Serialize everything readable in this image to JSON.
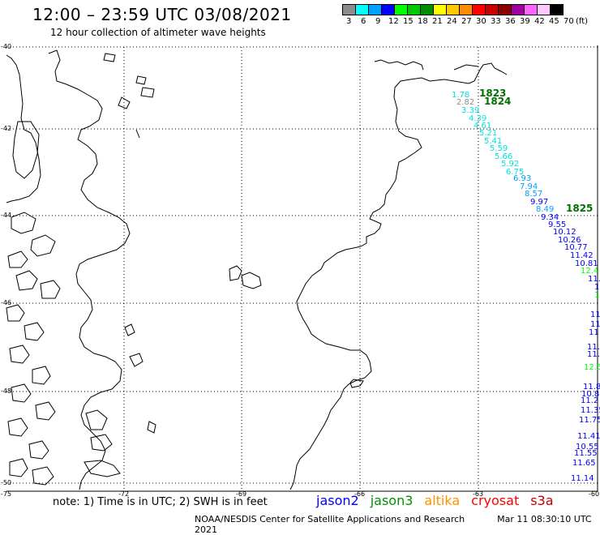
{
  "title": "12:00 – 23:59 UTC 03/08/2021",
  "subtitle": "12 hour collection of altimeter wave heights",
  "legend": {
    "unit": "(ft)",
    "bins": [
      {
        "label": "3",
        "color": "#8c8c8c"
      },
      {
        "label": "6",
        "color": "#00ffff"
      },
      {
        "label": "9",
        "color": "#00a0ff"
      },
      {
        "label": "12",
        "color": "#0000ff"
      },
      {
        "label": "15",
        "color": "#00ff00"
      },
      {
        "label": "18",
        "color": "#00c800"
      },
      {
        "label": "21",
        "color": "#008c00"
      },
      {
        "label": "24",
        "color": "#ffff00"
      },
      {
        "label": "27",
        "color": "#ffc800"
      },
      {
        "label": "30",
        "color": "#ff8c00"
      },
      {
        "label": "33",
        "color": "#ff0000"
      },
      {
        "label": "36",
        "color": "#c80000"
      },
      {
        "label": "39",
        "color": "#8c0000"
      },
      {
        "label": "42",
        "color": "#a000a0"
      },
      {
        "label": "45",
        "color": "#ff64ff"
      },
      {
        "label": "70",
        "color": "#ffc8ff"
      },
      {
        "label": "",
        "color": "#000000"
      }
    ]
  },
  "axes": {
    "lat_labels": [
      "-40",
      "-42",
      "-44",
      "-46",
      "-48",
      "-50"
    ],
    "lon_labels": [
      "-75",
      "-72",
      "-69",
      "-66",
      "-63",
      "-60"
    ]
  },
  "tracks": {
    "times": [
      {
        "label": "1823",
        "color": "#007000"
      },
      {
        "label": "1824",
        "color": "#007000"
      },
      {
        "label": "1825",
        "color": "#007000"
      }
    ],
    "track1_values": [
      {
        "v": "1.78",
        "c": "#00e0e0"
      },
      {
        "v": "2.82",
        "c": "#8c8c8c"
      },
      {
        "v": "3.39",
        "c": "#00e0e0"
      },
      {
        "v": "4.39",
        "c": "#00e0e0"
      },
      {
        "v": "4.61",
        "c": "#00e0e0"
      },
      {
        "v": "5.21",
        "c": "#00e0e0"
      },
      {
        "v": "5.41",
        "c": "#00e0e0"
      },
      {
        "v": "5.59",
        "c": "#00e0e0"
      },
      {
        "v": "5.66",
        "c": "#00e0e0"
      },
      {
        "v": "5.92",
        "c": "#00e0e0"
      },
      {
        "v": "6.75",
        "c": "#00e0e0"
      },
      {
        "v": "6.93",
        "c": "#00a0ff"
      },
      {
        "v": "7.94",
        "c": "#00a0ff"
      },
      {
        "v": "8.57",
        "c": "#00a0ff"
      },
      {
        "v": "9.97",
        "c": "#0000ff"
      },
      {
        "v": "8.49",
        "c": "#00a0ff"
      },
      {
        "v": "9.34",
        "c": "#0000ff"
      },
      {
        "v": "9.55",
        "c": "#0000ff"
      },
      {
        "v": "10.12",
        "c": "#0000ff"
      },
      {
        "v": "10.26",
        "c": "#0000ff"
      },
      {
        "v": "10.77",
        "c": "#0000ff"
      },
      {
        "v": "11.42",
        "c": "#0000ff"
      },
      {
        "v": "10.81",
        "c": "#0000ff"
      },
      {
        "v": "12.4",
        "c": "#00ff00"
      },
      {
        "v": "11.",
        "c": "#0000ff"
      },
      {
        "v": "1",
        "c": "#0000ff"
      },
      {
        "v": "1",
        "c": "#00ff00"
      }
    ],
    "track2_values": [
      {
        "v": "11",
        "c": "#0000ff"
      },
      {
        "v": "11",
        "c": "#0000ff"
      },
      {
        "v": "11",
        "c": "#0000ff"
      },
      {
        "v": "11.",
        "c": "#0000ff"
      },
      {
        "v": "11.",
        "c": "#0000ff"
      },
      {
        "v": "12.5",
        "c": "#00ff00"
      },
      {
        "v": "11.8",
        "c": "#0000ff"
      },
      {
        "v": "10.8",
        "c": "#0000ff"
      },
      {
        "v": "11.2",
        "c": "#0000ff"
      },
      {
        "v": "11.35",
        "c": "#0000ff"
      },
      {
        "v": "11.75",
        "c": "#0000ff"
      },
      {
        "v": "11.41",
        "c": "#0000ff"
      },
      {
        "v": "10.55",
        "c": "#0000ff"
      },
      {
        "v": "11.55",
        "c": "#0000ff"
      },
      {
        "v": "11.65",
        "c": "#0000ff"
      },
      {
        "v": "11.14",
        "c": "#0000ff"
      }
    ]
  },
  "satellites": [
    {
      "name": "jason2",
      "color": "#0000ff"
    },
    {
      "name": "jason3",
      "color": "#009000"
    },
    {
      "name": "altika",
      "color": "#ff9000"
    },
    {
      "name": "cryosat",
      "color": "#ff0000"
    },
    {
      "name": "s3a",
      "color": "#c00000"
    }
  ],
  "note": "note:  1) Time is in UTC;  2) SWH is in feet",
  "credit": "NOAA/NESDIS Center for Satellite Applications and Research",
  "generated": "Mar 11 08:30:10 UTC 2021"
}
